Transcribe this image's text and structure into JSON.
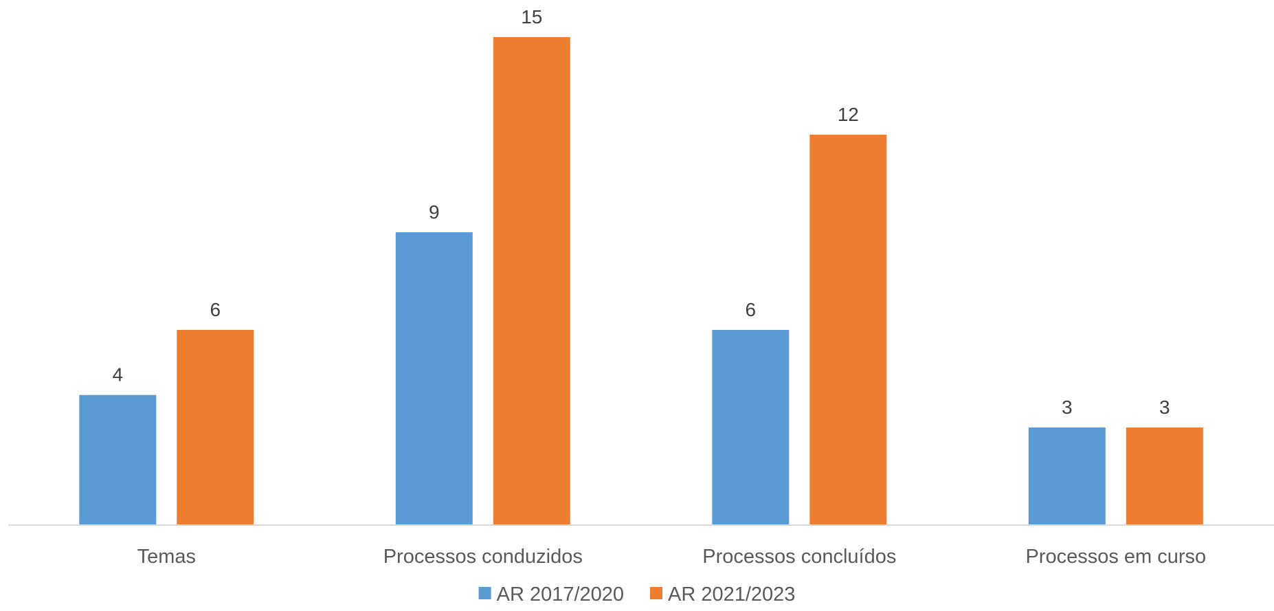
{
  "chart_data": {
    "type": "bar",
    "categories": [
      "Temas",
      "Processos conduzidos",
      "Processos concluídos",
      "Processos em curso"
    ],
    "series": [
      {
        "name": "AR 2017/2020",
        "values": [
          4,
          9,
          6,
          3
        ],
        "color": "#5b9bd5"
      },
      {
        "name": "AR 2021/2023",
        "values": [
          6,
          15,
          12,
          3
        ],
        "color": "#ed7d31"
      }
    ],
    "title": "",
    "xlabel": "",
    "ylabel": "",
    "ylim": [
      0,
      15
    ],
    "grid": false,
    "data_labels": true,
    "legend_position": "bottom"
  }
}
